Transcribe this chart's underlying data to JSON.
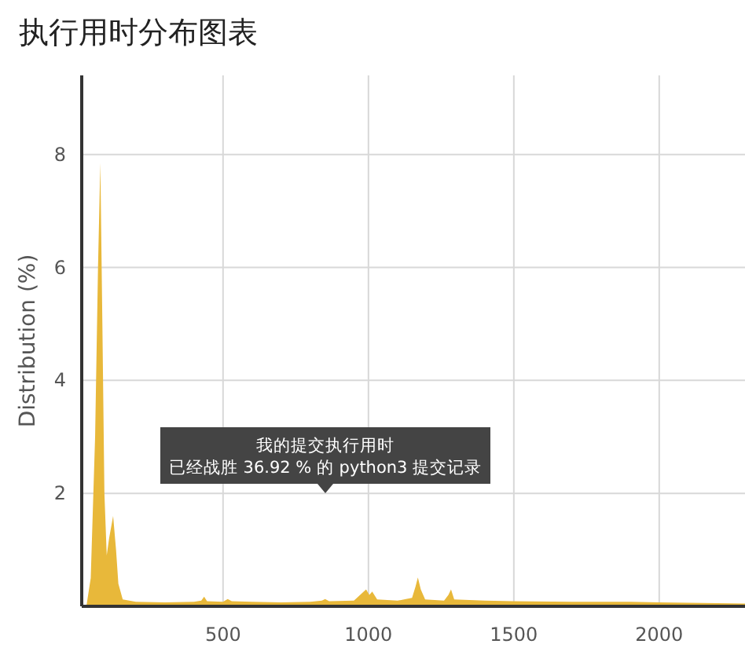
{
  "chart_data": {
    "type": "area",
    "title": "执行用时分布图表",
    "ylabel": "Distribution (%)",
    "x": [
      30,
      45,
      60,
      70,
      78,
      85,
      92,
      100,
      108,
      122,
      132,
      140,
      155,
      200,
      300,
      400,
      425,
      435,
      445,
      500,
      516,
      530,
      600,
      700,
      800,
      840,
      851,
      865,
      950,
      975,
      992,
      1003,
      1013,
      1030,
      1100,
      1150,
      1162,
      1170,
      1180,
      1195,
      1260,
      1275,
      1284,
      1295,
      1400,
      1500,
      1700,
      1900,
      2000,
      2150,
      2295
    ],
    "values": [
      0,
      0.5,
      3,
      6,
      7.85,
      5,
      2,
      0.9,
      1.2,
      1.6,
      1.0,
      0.4,
      0.12,
      0.08,
      0.07,
      0.08,
      0.1,
      0.17,
      0.09,
      0.08,
      0.13,
      0.09,
      0.08,
      0.07,
      0.08,
      0.1,
      0.13,
      0.09,
      0.1,
      0.22,
      0.3,
      0.2,
      0.26,
      0.12,
      0.1,
      0.15,
      0.35,
      0.51,
      0.3,
      0.12,
      0.1,
      0.2,
      0.3,
      0.12,
      0.1,
      0.09,
      0.08,
      0.08,
      0.07,
      0.06,
      0.05
    ],
    "color": "#e8b83a",
    "xlim": [
      14,
      2295
    ],
    "ylim": [
      0,
      9.4
    ],
    "xticks": [
      500,
      1000,
      1500,
      2000
    ],
    "yticks": [
      2,
      4,
      6,
      8
    ],
    "grid": true,
    "annotations": [
      "我的提交执行用时",
      "已经战胜 36.92 % 的 python3 提交记录"
    ]
  }
}
